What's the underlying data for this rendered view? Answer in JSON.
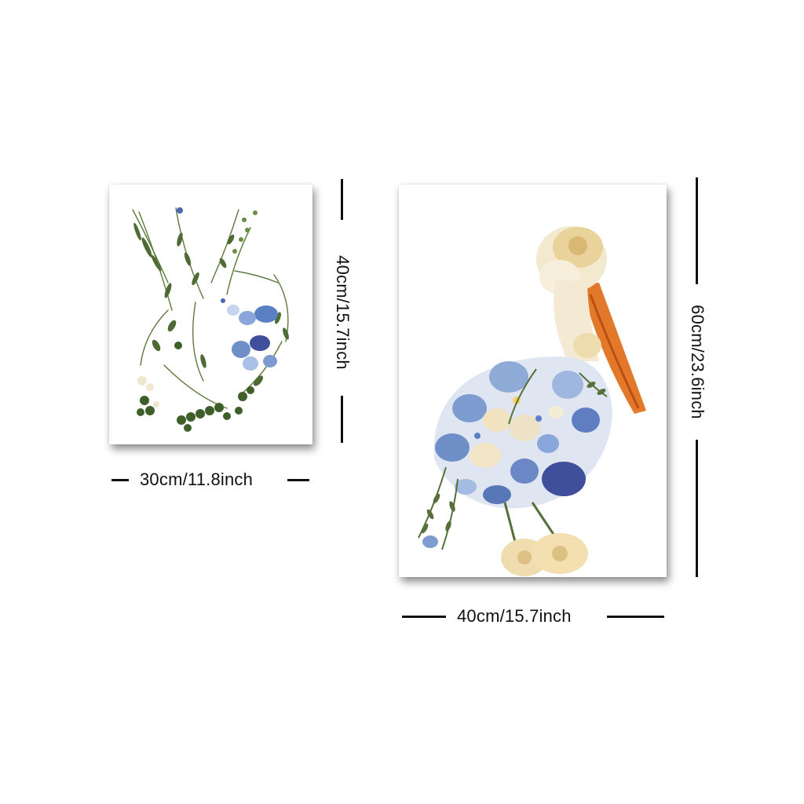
{
  "prints": [
    {
      "subject": "pressed-flower-vase",
      "width_label": "30cm/11.8inch",
      "height_label": "40cm/15.7inch"
    },
    {
      "subject": "pressed-flower-pelican",
      "width_label": "40cm/15.7inch",
      "height_label": "60cm/23.6inch"
    }
  ],
  "colors": {
    "background": "#ffffff",
    "dimension_ink": "#111111",
    "leaf_green": "#4f6b35",
    "flower_blue": "#6f8fc9",
    "deep_blue": "#3f4f9c",
    "cream_petal": "#f1e2c0",
    "beak_orange": "#e2792a"
  }
}
